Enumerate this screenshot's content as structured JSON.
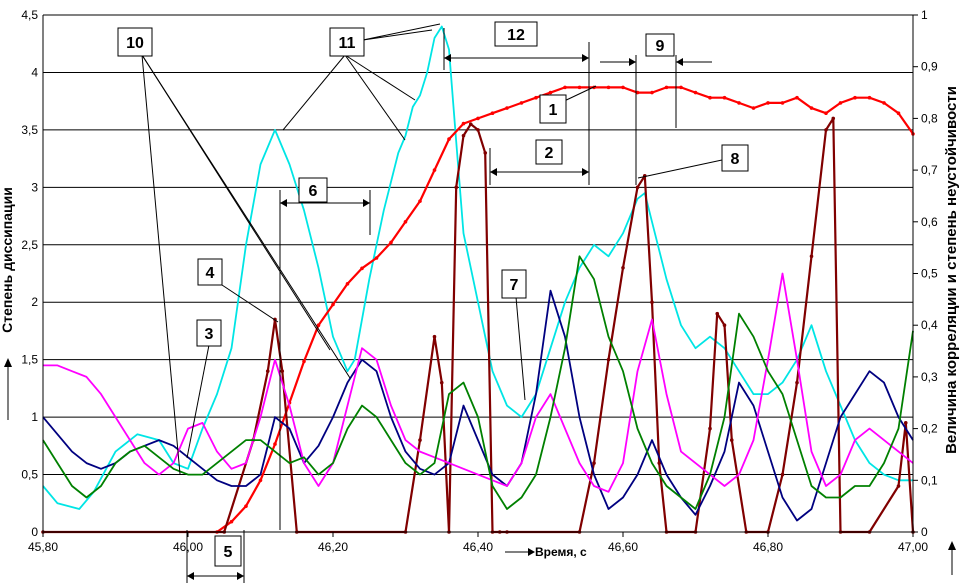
{
  "chart_data": {
    "type": "line",
    "xlabel": "Время, с",
    "ylabel_left": "Степень диссипации",
    "ylabel_right": "Величина корреляции и степень неустойчивости",
    "x_ticks": [
      "45,80",
      "46,00",
      "46,20",
      "46,40",
      "46,60",
      "46,80",
      "47,00"
    ],
    "y_left_ticks": [
      "0",
      "0,5",
      "1",
      "1,5",
      "2",
      "2,5",
      "3",
      "3,5",
      "4",
      "4,5"
    ],
    "y_right_ticks": [
      "0",
      "0,1",
      "0,2",
      "0,3",
      "0,4",
      "0,5",
      "0,6",
      "0,7",
      "0,8",
      "0,9",
      "1"
    ],
    "xlim": [
      45.8,
      47.0
    ],
    "ylim_left": [
      0,
      4.5
    ],
    "ylim_right": [
      0,
      1
    ],
    "grid": true,
    "colors": {
      "cyan": "#00e5e5",
      "red": "#ff0000",
      "darkred": "#800000",
      "blue": "#000080",
      "magenta": "#ff00ff",
      "green": "#008000"
    },
    "series": [
      {
        "name": "cyan",
        "axis": "left",
        "x": [
          45.8,
          45.82,
          45.85,
          45.87,
          45.9,
          45.93,
          45.96,
          45.98,
          46.0,
          46.02,
          46.04,
          46.06,
          46.08,
          46.1,
          46.12,
          46.14,
          46.16,
          46.18,
          46.2,
          46.22,
          46.23,
          46.25,
          46.27,
          46.29,
          46.3,
          46.31,
          46.32,
          46.33,
          46.34,
          46.35,
          46.36,
          46.37,
          46.38,
          46.4,
          46.42,
          46.44,
          46.46,
          46.48,
          46.5,
          46.52,
          46.54,
          46.56,
          46.58,
          46.6,
          46.62,
          46.63,
          46.64,
          46.66,
          46.68,
          46.7,
          46.72,
          46.74,
          46.76,
          46.78,
          46.8,
          46.82,
          46.84,
          46.86,
          46.88,
          46.9,
          46.92,
          46.94,
          46.96,
          46.98,
          47.0
        ],
        "y": [
          0.4,
          0.25,
          0.2,
          0.35,
          0.7,
          0.85,
          0.8,
          0.6,
          0.55,
          0.9,
          1.2,
          1.6,
          2.5,
          3.2,
          3.5,
          3.2,
          2.8,
          2.3,
          1.7,
          1.4,
          1.5,
          2.2,
          2.8,
          3.3,
          3.45,
          3.7,
          3.8,
          4.0,
          4.3,
          4.4,
          4.2,
          3.4,
          2.6,
          2.0,
          1.4,
          1.1,
          1.0,
          1.2,
          1.6,
          2.0,
          2.3,
          2.5,
          2.4,
          2.6,
          2.9,
          2.95,
          2.7,
          2.2,
          1.8,
          1.6,
          1.7,
          1.6,
          1.4,
          1.2,
          1.2,
          1.3,
          1.5,
          1.8,
          1.4,
          1.1,
          0.8,
          0.6,
          0.5,
          0.45,
          0.45
        ]
      },
      {
        "name": "red",
        "axis": "right",
        "x": [
          46.04,
          46.06,
          46.08,
          46.1,
          46.12,
          46.14,
          46.16,
          46.18,
          46.2,
          46.22,
          46.24,
          46.26,
          46.28,
          46.3,
          46.32,
          46.34,
          46.36,
          46.38,
          46.4,
          46.42,
          46.44,
          46.46,
          46.48,
          46.5,
          46.52,
          46.54,
          46.56,
          46.58,
          46.6,
          46.62,
          46.64,
          46.66,
          46.68,
          46.7,
          46.72,
          46.74,
          46.76,
          46.78,
          46.8,
          46.82,
          46.84,
          46.86,
          46.88,
          46.9,
          46.92,
          46.94,
          46.96,
          46.98,
          47.0
        ],
        "y": [
          0.0,
          0.02,
          0.05,
          0.1,
          0.17,
          0.25,
          0.33,
          0.4,
          0.44,
          0.48,
          0.51,
          0.53,
          0.56,
          0.6,
          0.64,
          0.7,
          0.76,
          0.79,
          0.8,
          0.81,
          0.82,
          0.83,
          0.84,
          0.85,
          0.86,
          0.86,
          0.86,
          0.86,
          0.86,
          0.85,
          0.85,
          0.86,
          0.86,
          0.85,
          0.84,
          0.84,
          0.83,
          0.82,
          0.83,
          0.83,
          0.84,
          0.82,
          0.81,
          0.83,
          0.84,
          0.84,
          0.83,
          0.81,
          0.77
        ]
      },
      {
        "name": "darkred",
        "axis": "left",
        "x": [
          45.8,
          46.05,
          46.09,
          46.11,
          46.12,
          46.13,
          46.15,
          46.3,
          46.32,
          46.34,
          46.35,
          46.36,
          46.37,
          46.38,
          46.39,
          46.4,
          46.41,
          46.42,
          46.43,
          46.44,
          46.54,
          46.56,
          46.58,
          46.6,
          46.62,
          46.63,
          46.64,
          46.65,
          46.66,
          46.7,
          46.72,
          46.73,
          46.74,
          46.75,
          46.77,
          46.8,
          46.82,
          46.84,
          46.86,
          46.88,
          46.89,
          46.9,
          46.94,
          46.98,
          46.99,
          47.0
        ],
        "y": [
          0,
          0,
          0.8,
          1.4,
          1.85,
          1.4,
          0,
          0,
          0.8,
          1.7,
          1.3,
          0,
          3.0,
          3.45,
          3.55,
          3.5,
          3.3,
          0,
          0,
          0,
          0,
          0.6,
          1.5,
          2.3,
          3.0,
          3.1,
          2.0,
          0.6,
          0,
          0,
          0.9,
          1.9,
          1.8,
          0.8,
          0,
          0,
          0.5,
          1.3,
          2.4,
          3.5,
          3.6,
          0,
          0,
          0.4,
          0.95,
          0
        ]
      },
      {
        "name": "blue",
        "axis": "left",
        "x": [
          45.8,
          45.82,
          45.84,
          45.86,
          45.88,
          45.9,
          45.92,
          45.94,
          45.96,
          45.98,
          46.0,
          46.02,
          46.04,
          46.06,
          46.08,
          46.1,
          46.12,
          46.14,
          46.16,
          46.18,
          46.2,
          46.22,
          46.24,
          46.26,
          46.28,
          46.3,
          46.32,
          46.34,
          46.36,
          46.38,
          46.4,
          46.42,
          46.44,
          46.46,
          46.48,
          46.5,
          46.52,
          46.54,
          46.56,
          46.58,
          46.6,
          46.62,
          46.64,
          46.66,
          46.68,
          46.7,
          46.72,
          46.74,
          46.76,
          46.78,
          46.8,
          46.82,
          46.84,
          46.86,
          46.88,
          46.9,
          46.92,
          46.94,
          46.96,
          46.98,
          47.0
        ],
        "y": [
          1.0,
          0.85,
          0.7,
          0.6,
          0.55,
          0.6,
          0.7,
          0.75,
          0.8,
          0.75,
          0.65,
          0.55,
          0.45,
          0.4,
          0.4,
          0.5,
          1.0,
          0.9,
          0.6,
          0.75,
          1.0,
          1.3,
          1.5,
          1.4,
          1.0,
          0.7,
          0.55,
          0.5,
          0.6,
          1.1,
          0.8,
          0.5,
          0.4,
          0.6,
          1.2,
          2.1,
          1.7,
          1.0,
          0.5,
          0.2,
          0.3,
          0.5,
          0.8,
          0.5,
          0.3,
          0.15,
          0.4,
          0.7,
          1.3,
          1.1,
          0.7,
          0.3,
          0.1,
          0.2,
          0.6,
          1.0,
          1.2,
          1.4,
          1.3,
          1.0,
          0.8
        ]
      },
      {
        "name": "magenta",
        "axis": "left",
        "x": [
          45.8,
          45.82,
          45.84,
          45.86,
          45.88,
          45.9,
          45.92,
          45.94,
          45.96,
          45.98,
          46.0,
          46.02,
          46.04,
          46.06,
          46.08,
          46.1,
          46.12,
          46.14,
          46.16,
          46.18,
          46.2,
          46.22,
          46.24,
          46.26,
          46.28,
          46.3,
          46.32,
          46.34,
          46.36,
          46.38,
          46.4,
          46.42,
          46.44,
          46.46,
          46.48,
          46.5,
          46.52,
          46.54,
          46.56,
          46.58,
          46.6,
          46.62,
          46.64,
          46.66,
          46.68,
          46.7,
          46.72,
          46.74,
          46.76,
          46.78,
          46.8,
          46.82,
          46.84,
          46.86,
          46.88,
          46.9,
          46.92,
          46.94,
          46.96,
          46.98,
          47.0
        ],
        "y": [
          1.45,
          1.45,
          1.4,
          1.35,
          1.2,
          1.0,
          0.8,
          0.6,
          0.5,
          0.6,
          0.9,
          0.95,
          0.7,
          0.55,
          0.6,
          1.0,
          1.5,
          1.1,
          0.6,
          0.4,
          0.6,
          1.1,
          1.6,
          1.5,
          1.1,
          0.8,
          0.7,
          0.65,
          0.6,
          0.55,
          0.5,
          0.45,
          0.4,
          0.6,
          1.0,
          1.2,
          0.9,
          0.6,
          0.4,
          0.35,
          0.6,
          1.4,
          1.85,
          1.2,
          0.7,
          0.6,
          0.5,
          0.4,
          0.5,
          0.8,
          1.5,
          2.25,
          1.5,
          0.7,
          0.4,
          0.5,
          0.8,
          0.9,
          0.8,
          0.7,
          0.6
        ]
      },
      {
        "name": "green",
        "axis": "left",
        "x": [
          45.8,
          45.82,
          45.84,
          45.86,
          45.88,
          45.9,
          45.92,
          45.94,
          45.96,
          45.98,
          46.0,
          46.02,
          46.04,
          46.06,
          46.08,
          46.1,
          46.12,
          46.14,
          46.16,
          46.18,
          46.2,
          46.22,
          46.24,
          46.26,
          46.28,
          46.3,
          46.32,
          46.34,
          46.36,
          46.38,
          46.4,
          46.42,
          46.44,
          46.46,
          46.48,
          46.5,
          46.52,
          46.54,
          46.56,
          46.58,
          46.6,
          46.62,
          46.64,
          46.66,
          46.68,
          46.7,
          46.72,
          46.74,
          46.76,
          46.78,
          46.8,
          46.82,
          46.84,
          46.86,
          46.88,
          46.9,
          46.92,
          46.94,
          46.96,
          46.98,
          47.0
        ],
        "y": [
          0.8,
          0.6,
          0.4,
          0.3,
          0.4,
          0.6,
          0.7,
          0.75,
          0.65,
          0.55,
          0.5,
          0.5,
          0.6,
          0.7,
          0.8,
          0.8,
          0.7,
          0.6,
          0.65,
          0.5,
          0.6,
          0.9,
          1.1,
          1.0,
          0.8,
          0.6,
          0.5,
          0.6,
          1.2,
          1.3,
          1.0,
          0.4,
          0.2,
          0.3,
          0.5,
          1.0,
          1.6,
          2.4,
          2.2,
          1.7,
          1.4,
          0.9,
          0.6,
          0.4,
          0.3,
          0.2,
          0.5,
          1.0,
          1.9,
          1.7,
          1.4,
          1.2,
          0.8,
          0.4,
          0.3,
          0.3,
          0.4,
          0.4,
          0.6,
          0.9,
          1.75
        ]
      }
    ],
    "annotations": [
      {
        "label": "1"
      },
      {
        "label": "2"
      },
      {
        "label": "3"
      },
      {
        "label": "4"
      },
      {
        "label": "5"
      },
      {
        "label": "6"
      },
      {
        "label": "7"
      },
      {
        "label": "8"
      },
      {
        "label": "9"
      },
      {
        "label": "10"
      },
      {
        "label": "11"
      },
      {
        "label": "12"
      }
    ]
  }
}
